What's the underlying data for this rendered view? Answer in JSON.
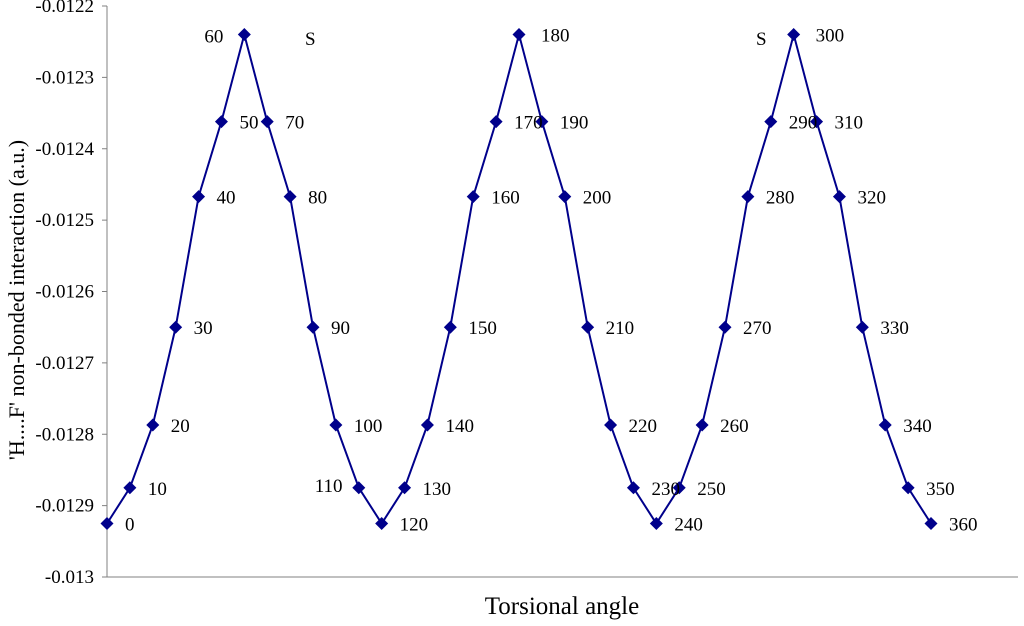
{
  "chart_data": {
    "type": "line",
    "title": "",
    "xlabel": "Torsional angle",
    "ylabel": "'H....F' non-bonded interaction (a.u.)",
    "ylim": [
      -0.013,
      -0.0122
    ],
    "yticks": [
      "-0.013",
      "-0.0129",
      "-0.0128",
      "-0.0127",
      "-0.0126",
      "-0.0125",
      "-0.0124",
      "-0.0123",
      "-0.0122"
    ],
    "xticks_shown": false,
    "grid": false,
    "legend": "none",
    "series": [
      {
        "color": "#00008B",
        "marker": "diamond",
        "x": [
          0,
          10,
          20,
          30,
          40,
          50,
          60,
          70,
          80,
          90,
          100,
          110,
          120,
          130,
          140,
          150,
          160,
          170,
          180,
          190,
          200,
          210,
          220,
          230,
          240,
          250,
          260,
          270,
          280,
          290,
          300,
          310,
          320,
          330,
          340,
          350,
          360
        ],
        "values": [
          -0.012925,
          -0.012875,
          -0.012787,
          -0.01265,
          -0.012467,
          -0.012362,
          -0.01224,
          -0.012362,
          -0.012467,
          -0.01265,
          -0.012787,
          -0.012875,
          -0.012925,
          -0.012875,
          -0.012787,
          -0.01265,
          -0.012467,
          -0.012362,
          -0.01224,
          -0.012362,
          -0.012467,
          -0.01265,
          -0.012787,
          -0.012875,
          -0.012925,
          -0.012875,
          -0.012787,
          -0.01265,
          -0.012467,
          -0.012362,
          -0.01224,
          -0.012362,
          -0.012467,
          -0.01265,
          -0.012787,
          -0.012875,
          -0.012925
        ],
        "point_labels": [
          "0",
          "10",
          "20",
          "30",
          "40",
          "50",
          "60",
          "70",
          "80",
          "90",
          "100",
          "110",
          "120",
          "130",
          "140",
          "150",
          "160",
          "170",
          "180",
          "190",
          "200",
          "210",
          "220",
          "230",
          "240",
          "250",
          "260",
          "270",
          "280",
          "290",
          "300",
          "310",
          "320",
          "330",
          "340",
          "350",
          "360"
        ]
      }
    ],
    "annotations": [
      "S",
      "S"
    ]
  }
}
